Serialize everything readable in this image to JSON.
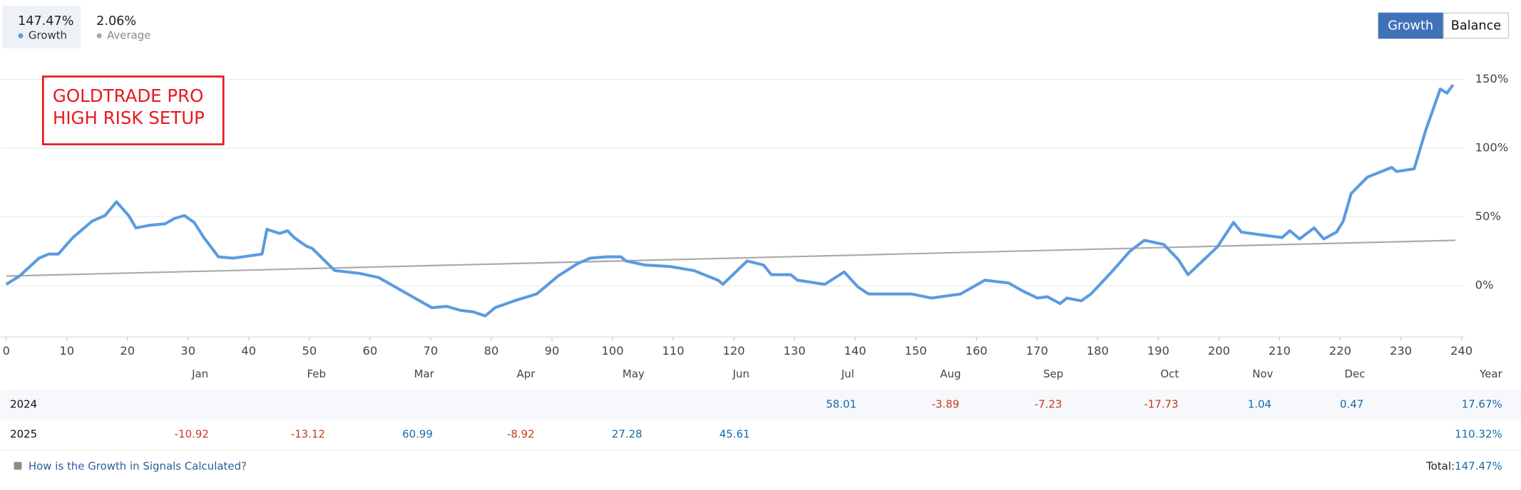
{
  "header": {
    "growth_value": "147.47%",
    "average_value": "2.06%",
    "buttons": [
      "Growth",
      "Balance"
    ]
  },
  "annotation": [
    "GOLDTRADE PRO",
    "HIGH RISK SETUP"
  ],
  "chart_data": {
    "type": "line",
    "series": [
      {
        "name": "Growth",
        "color": "#5b9be0",
        "x": [
          0,
          2.2,
          5.4,
          7,
          8.6,
          11,
          14.2,
          16.3,
          18.2,
          20.2,
          21.4,
          23.8,
          26.2,
          27.8,
          29.4,
          31,
          32.6,
          35,
          37.4,
          39,
          42.2,
          43,
          45.1,
          46.4,
          47.5,
          49.4,
          50.5,
          54.2,
          58.2,
          61.4,
          66.2,
          70.2,
          72.6,
          75,
          77,
          79,
          80.6,
          83.8,
          87.5,
          91,
          94.2,
          96.3,
          99,
          101.4,
          102.2,
          105.4,
          109.4,
          113.4,
          117.4,
          118.2,
          122.2,
          124.9,
          126.2,
          129.4,
          130.5,
          135,
          138.2,
          140.5,
          142.2,
          149.3,
          152.6,
          157.4,
          159,
          161.4,
          165.3,
          167.7,
          170.1,
          171.7,
          173.8,
          174.9,
          177.3,
          178.9,
          182.1,
          185.3,
          187.7,
          190.9,
          193.3,
          194.9,
          197.3,
          199.7,
          202.4,
          203.7,
          206.9,
          210.4,
          211.7,
          213.3,
          215.7,
          217.3,
          219.4,
          220.5,
          221.8,
          224.5,
          228.5,
          229.3,
          232.2,
          234.1,
          236.5,
          237.6,
          238.6
        ],
        "values": [
          1,
          7,
          20,
          23,
          23,
          35,
          47,
          51,
          61,
          51,
          42,
          44,
          45,
          49,
          51,
          46,
          35,
          21,
          20,
          21,
          23,
          41,
          38,
          40,
          35,
          29,
          27,
          11,
          9,
          6,
          -6,
          -16,
          -15,
          -18,
          -19,
          -22,
          -16,
          -11,
          -6,
          7,
          16,
          20,
          21,
          21,
          18,
          15,
          14,
          11,
          4,
          1,
          18,
          15,
          8,
          8,
          4,
          1,
          10,
          -1,
          -6,
          -6,
          -9,
          -6,
          -2,
          4,
          2,
          -4,
          -9,
          -8,
          -13,
          -9,
          -11,
          -6,
          9,
          25,
          33,
          30,
          19,
          8,
          18,
          28,
          46,
          39,
          37,
          35,
          40,
          34,
          42,
          34,
          39,
          47,
          67,
          79,
          86,
          83,
          85,
          113,
          143,
          140,
          146
        ]
      },
      {
        "name": "Average",
        "color": "#aaaaaa",
        "x": [
          0,
          239
        ],
        "values": [
          7,
          33
        ]
      }
    ],
    "xlim": [
      0,
      240
    ],
    "xticks": [
      0,
      10,
      20,
      30,
      40,
      50,
      60,
      70,
      80,
      90,
      100,
      110,
      120,
      130,
      140,
      150,
      160,
      170,
      180,
      190,
      200,
      210,
      220,
      230,
      240
    ],
    "ylim": [
      -37.3,
      150
    ],
    "yticks": [
      {
        "value": 0,
        "label": "0%"
      },
      {
        "value": 50,
        "label": "50%"
      },
      {
        "value": 100,
        "label": "100%"
      },
      {
        "value": 150,
        "label": "150%"
      }
    ],
    "grid": true
  },
  "table": {
    "months": [
      "Jan",
      "Feb",
      "Mar",
      "Apr",
      "May",
      "Jun",
      "Jul",
      "Aug",
      "Sep",
      "Oct",
      "Nov",
      "Dec"
    ],
    "year_header": "Year",
    "rows": [
      {
        "year": "2024",
        "months": [
          null,
          null,
          null,
          null,
          null,
          null,
          "58.01",
          "-3.89",
          "-7.23",
          "-17.73",
          "1.04",
          "0.47"
        ],
        "total": "17.67%"
      },
      {
        "year": "2025",
        "months": [
          "-10.92",
          "-13.12",
          "60.99",
          "-8.92",
          "27.28",
          "45.61",
          null,
          null,
          null,
          null,
          null,
          null
        ],
        "total": "110.32%"
      }
    ]
  },
  "footer": {
    "link": "How is the Growth in Signals Calculated?",
    "total_label": "Total:",
    "total_value": "147.47%"
  }
}
